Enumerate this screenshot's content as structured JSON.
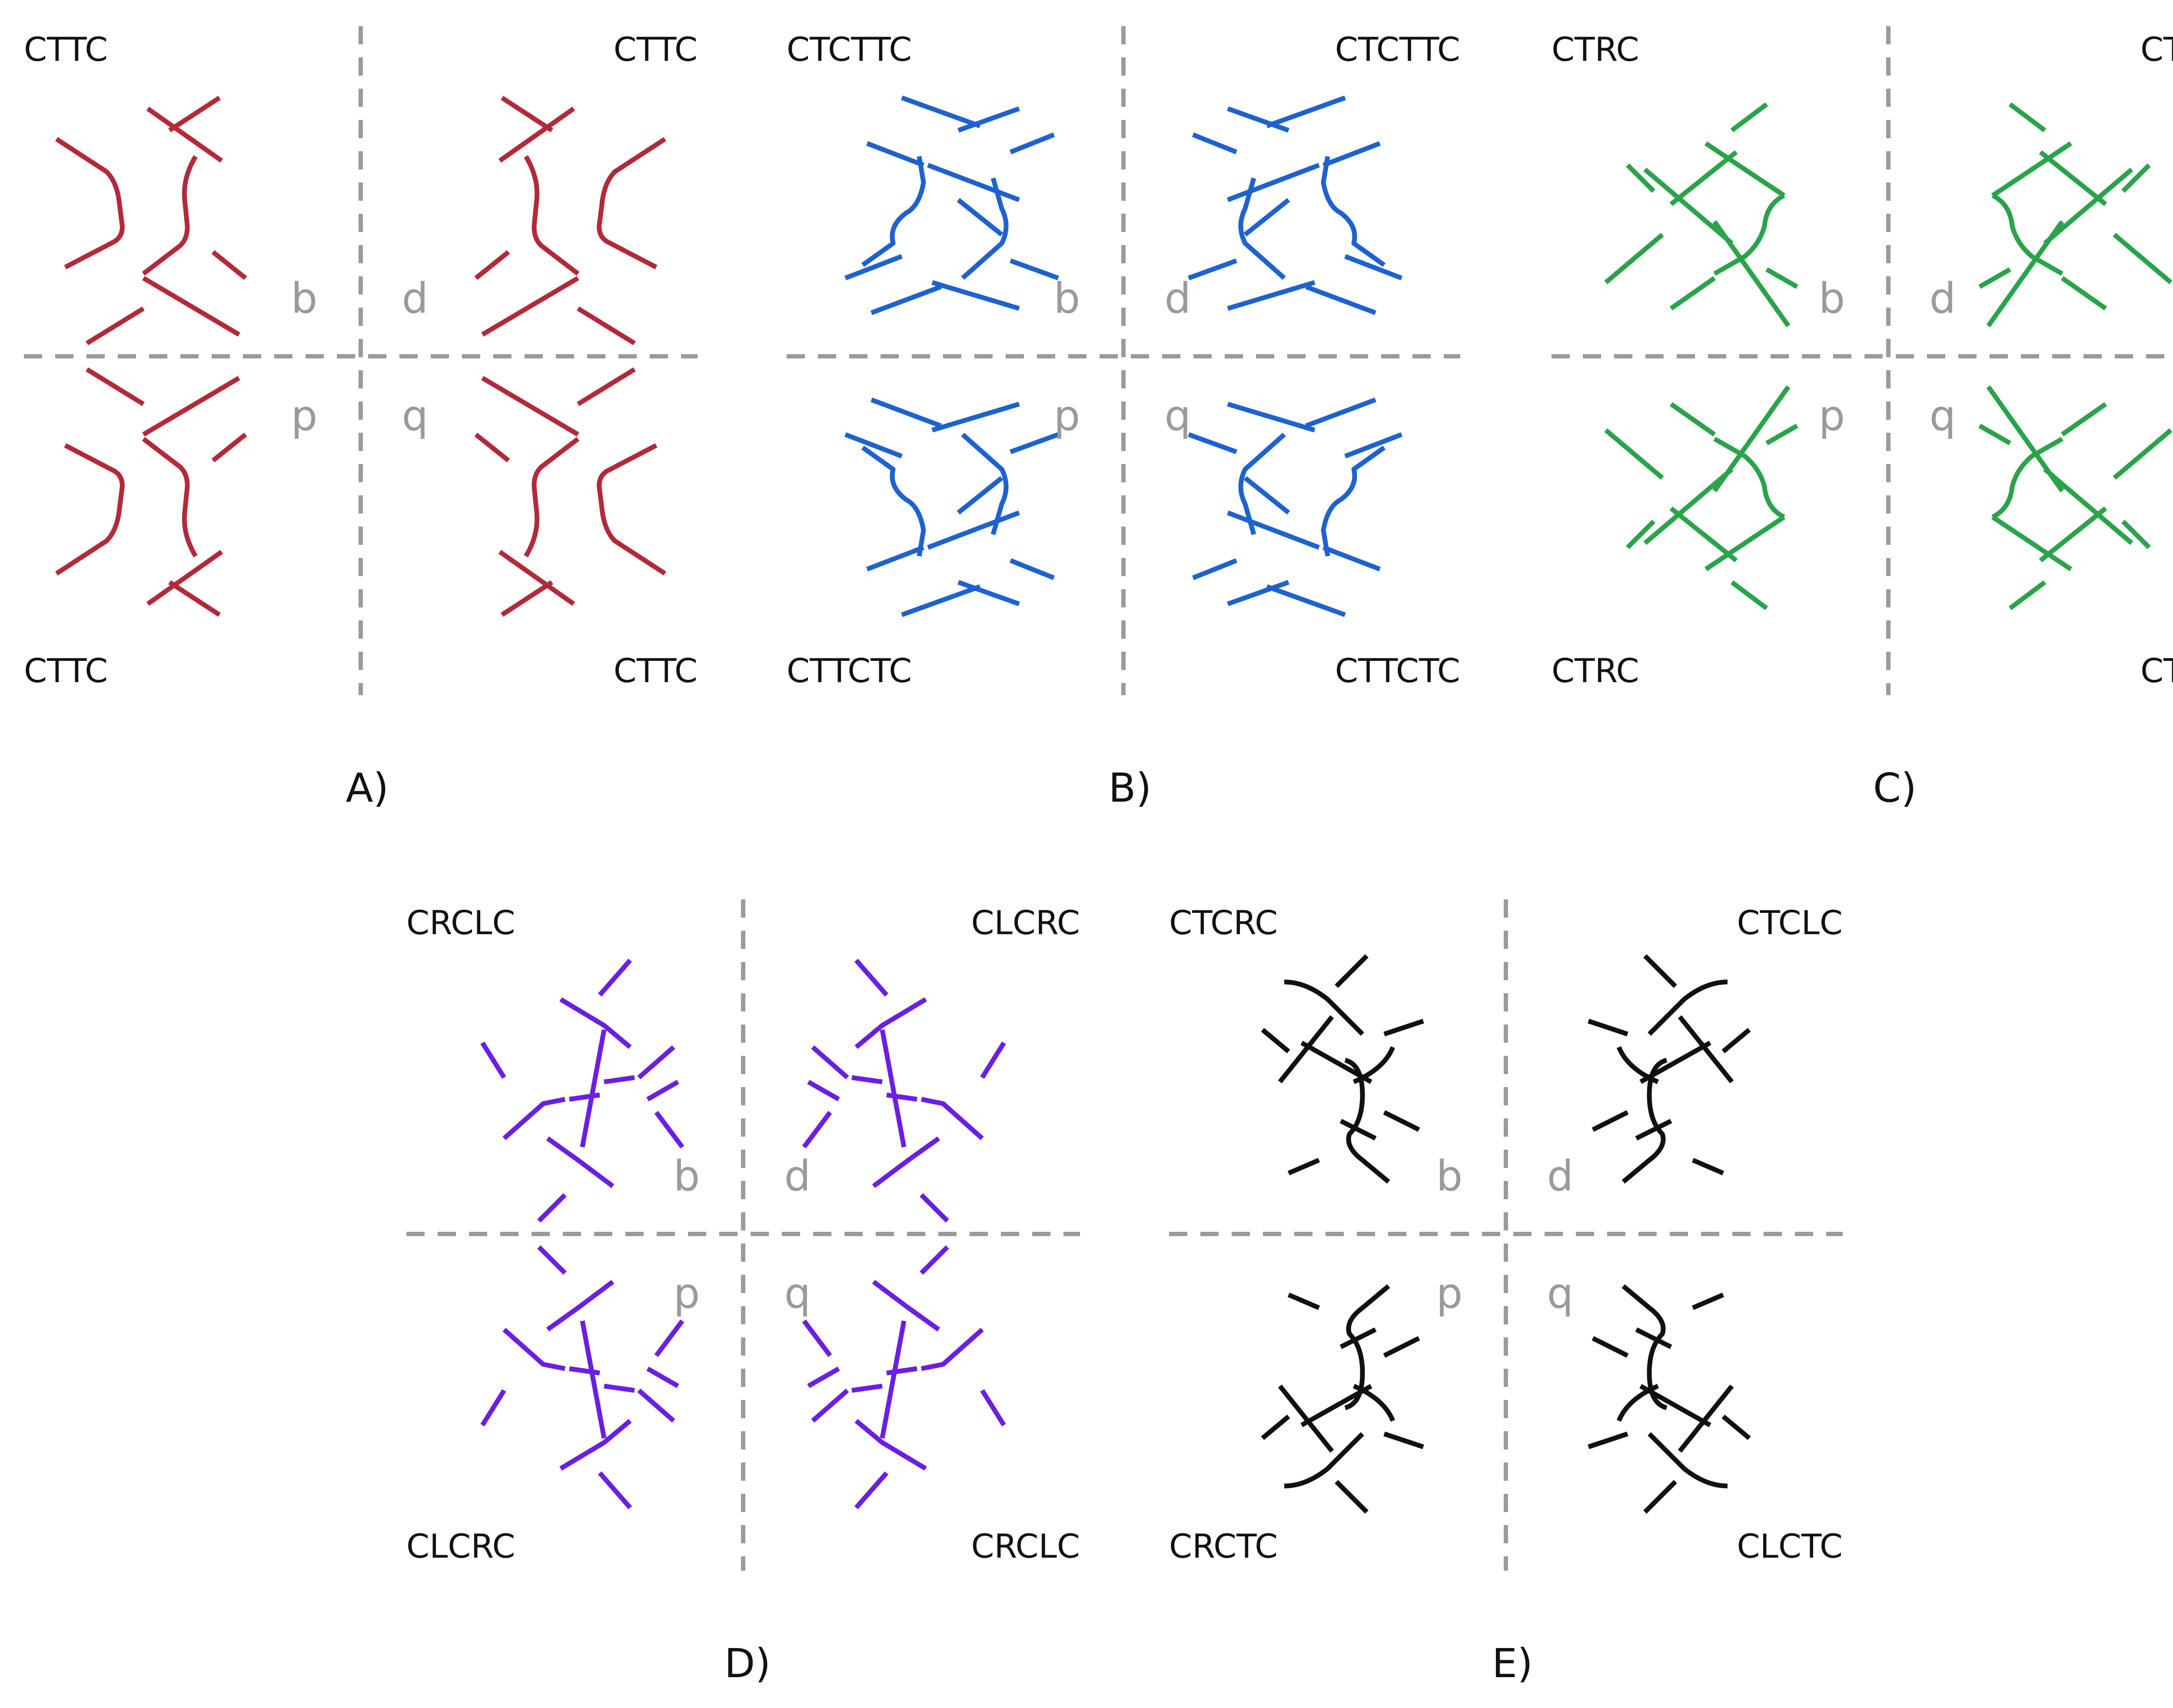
{
  "colors": {
    "A": "#b22a3a",
    "B": "#1e62d0",
    "C": "#2aa34a",
    "D": "#6a1fe3",
    "E": "#111111",
    "divider": "#9a9a9a",
    "mirror_letter": "#9a9a9a"
  },
  "mirror_letters": {
    "tl": "b",
    "tr": "d",
    "bl": "p",
    "br": "q"
  },
  "panels": [
    {
      "id": "A",
      "label": "A)",
      "codes": {
        "tl": "CTTC",
        "tr": "CTTC",
        "bl": "CTTC",
        "br": "CTTC"
      }
    },
    {
      "id": "B",
      "label": "B)",
      "codes": {
        "tl": "CTCTTC",
        "tr": "CTCTTC",
        "bl": "CTTCTC",
        "br": "CTTCTC"
      }
    },
    {
      "id": "C",
      "label": "C)",
      "codes": {
        "tl": "CTRC",
        "tr": "CTLC",
        "bl": "CTRC",
        "br": "CTLC"
      }
    },
    {
      "id": "D",
      "label": "D)",
      "codes": {
        "tl": "CRCLC",
        "tr": "CLCRC",
        "bl": "CLCRC",
        "br": "CRCLC"
      }
    },
    {
      "id": "E",
      "label": "E)",
      "codes": {
        "tl": "CTCRC",
        "tr": "CTCLC",
        "bl": "CRCTC",
        "br": "CLCTC"
      }
    }
  ]
}
